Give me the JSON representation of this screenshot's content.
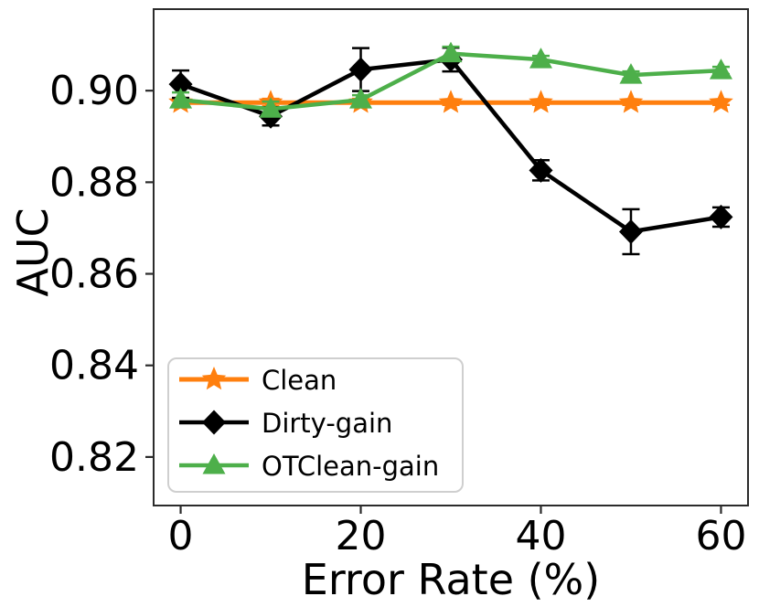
{
  "chart_data": {
    "type": "line",
    "title": "",
    "xlabel": "Error Rate (%)",
    "ylabel": "AUC",
    "x": [
      0,
      10,
      20,
      30,
      40,
      50,
      60
    ],
    "xticks": [
      0,
      20,
      40,
      60
    ],
    "xtick_labels": [
      "0",
      "20",
      "40",
      "60"
    ],
    "yticks": [
      0.82,
      0.84,
      0.86,
      0.88,
      0.9
    ],
    "ytick_labels": [
      "0.82",
      "0.84",
      "0.86",
      "0.88",
      "0.90"
    ],
    "xlim": [
      -3,
      63
    ],
    "ylim": [
      0.8094,
      0.9178
    ],
    "grid": false,
    "legend_position": "lower left",
    "legend_entries": [
      "Clean",
      "Dirty-gain",
      "OTClean-gain"
    ],
    "colors": {
      "clean": "#ff7f0e",
      "dirty_gain": "#000000",
      "otclean_gain": "#4daf4a",
      "spine": "#2b2b2b",
      "legend_border": "#cfcfcf"
    },
    "series": [
      {
        "name": "Clean",
        "marker": "star",
        "color": "#ff7f0e",
        "values": [
          0.8974,
          0.8974,
          0.8974,
          0.8974,
          0.8974,
          0.8974,
          0.8974
        ],
        "yerr": [
          0.001,
          0.0008,
          0.0008,
          0.0005,
          0.0005,
          0.0005,
          0.0005
        ]
      },
      {
        "name": "Dirty-gain",
        "marker": "diamond",
        "color": "#000000",
        "values": [
          0.9014,
          0.8944,
          0.9046,
          0.9068,
          0.8826,
          0.8692,
          0.8724
        ],
        "yerr": [
          0.003,
          0.002,
          0.0047,
          0.0026,
          0.0022,
          0.0049,
          0.0021
        ]
      },
      {
        "name": "OTClean-gain",
        "marker": "triangle_up",
        "color": "#4daf4a",
        "values": [
          0.898,
          0.896,
          0.898,
          0.9081,
          0.9068,
          0.9034,
          0.9044
        ],
        "yerr": [
          0.0016,
          0.0016,
          0.001,
          0.0015,
          0.0008,
          0.0008,
          0.0008
        ]
      }
    ]
  }
}
